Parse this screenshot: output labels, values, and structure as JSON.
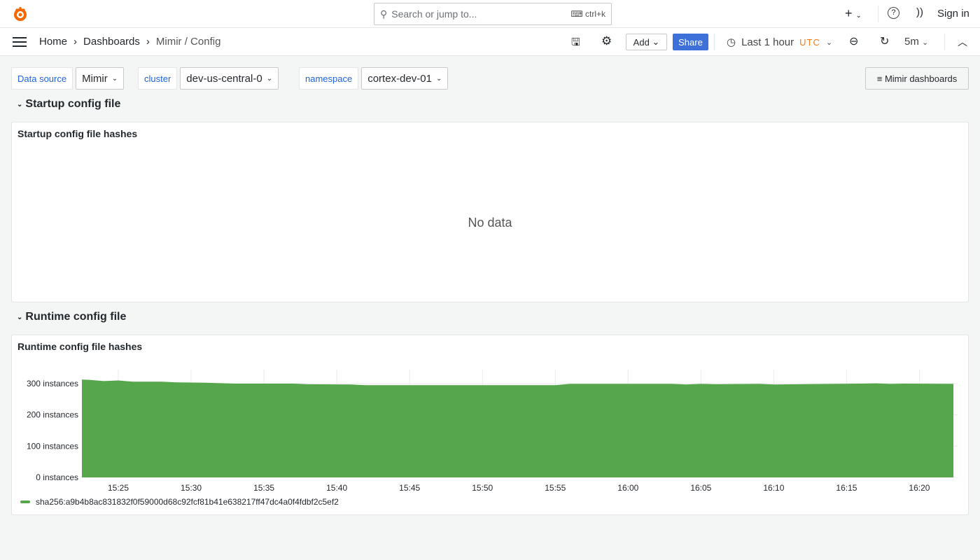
{
  "topbar": {
    "search_placeholder": "Search or jump to...",
    "shortcut": "ctrl+k",
    "sign_in": "Sign in"
  },
  "breadcrumb": [
    "Home",
    "Dashboards",
    "Mimir / Config"
  ],
  "toolbar": {
    "add": "Add",
    "share": "Share",
    "time_range": "Last 1 hour",
    "timezone": "UTC",
    "refresh": "5m"
  },
  "variables": [
    {
      "label": "Data source",
      "value": "Mimir"
    },
    {
      "label": "cluster",
      "value": "dev-us-central-0"
    },
    {
      "label": "namespace",
      "value": "cortex-dev-01"
    }
  ],
  "links": {
    "mimir_dashboards": "Mimir dashboards"
  },
  "rows": [
    {
      "title": "Startup config file",
      "panel_title": "Startup config file hashes",
      "empty": "No data"
    },
    {
      "title": "Runtime config file",
      "panel_title": "Runtime config file hashes"
    }
  ],
  "colors": {
    "series": "#56a64b",
    "accent": "#3d71d9",
    "timezone": "#ff780a"
  },
  "chart_data": {
    "type": "area",
    "x_ticks": [
      "15:25",
      "15:30",
      "15:35",
      "15:40",
      "15:45",
      "15:50",
      "15:55",
      "16:00",
      "16:05",
      "16:10",
      "16:15",
      "16:20"
    ],
    "y_ticks": [
      "0 instances",
      "100 instances",
      "200 instances",
      "300 instances"
    ],
    "ylim": [
      0,
      300
    ],
    "xlim": [
      "15:22:30",
      "16:22:20"
    ],
    "grid": true,
    "legend": "bottom-left",
    "series": [
      {
        "name": "sha256:a9b4b8ac831832f0f59000d68c92fcf81b41e638217ff47dc4a0f4fdbf2c5ef2",
        "x": [
          "15:22:30",
          "15:23",
          "15:24",
          "15:25",
          "15:26",
          "15:28",
          "15:29",
          "15:31",
          "15:33",
          "15:37",
          "15:38",
          "15:41",
          "15:42",
          "15:55",
          "15:56",
          "16:03",
          "16:04",
          "16:05",
          "16:06",
          "16:09",
          "16:10",
          "16:16",
          "16:17",
          "16:18",
          "16:19",
          "16:22:20"
        ],
        "values": [
          313,
          312,
          308,
          310,
          306,
          306,
          304,
          303,
          300,
          300,
          298,
          297,
          295,
          295,
          299,
          299,
          297,
          299,
          298,
          299,
          297,
          300,
          301,
          299,
          300,
          299
        ]
      }
    ]
  }
}
